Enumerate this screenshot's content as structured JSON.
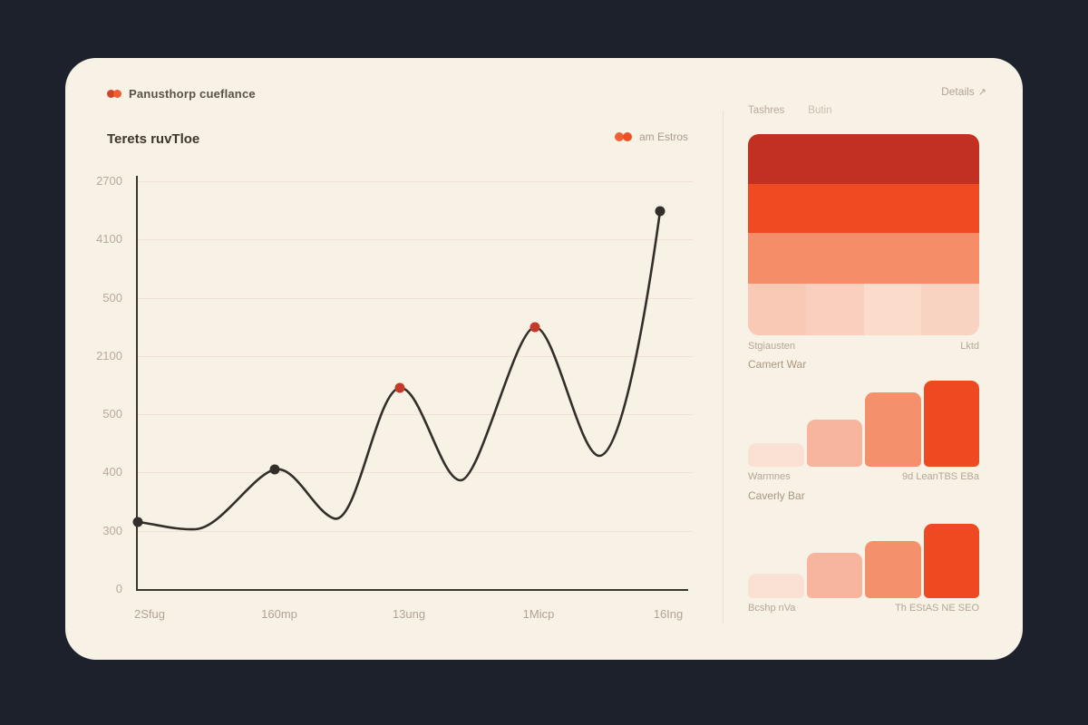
{
  "colors": {
    "background": "#1c212b",
    "card": "#f8f1e6",
    "accent_dark_red": "#c13020",
    "accent_orange": "#ee4a21",
    "curve": "#332e29",
    "marker_dark": "#332e29",
    "marker_red": "#c33a28"
  },
  "header": {
    "brand": "Panusthorp cueflance",
    "details_label": "Details",
    "details_icon": "↗"
  },
  "chart": {
    "title": "Terets ruvTloe",
    "legend_label": "am Estros",
    "y_ticks": [
      "2700",
      "4100",
      "500",
      "2100",
      "500",
      "400",
      "300",
      "0"
    ],
    "x_ticks": [
      "2Sfug",
      "160mp",
      "13ung",
      "1Micp",
      "16Ing"
    ]
  },
  "chart_data": {
    "type": "line",
    "title": "Terets ruvTloe",
    "x": [
      "2Sfug",
      "160mp",
      "13ung",
      "1Micp",
      "16Ing"
    ],
    "series": [
      {
        "name": "am Estros",
        "values": [
          115,
          210,
          350,
          460,
          660
        ]
      }
    ],
    "marker_colors": [
      "dark",
      "dark",
      "red",
      "red",
      "dark"
    ],
    "valleys_between_points": [
      100,
      125,
      190,
      230
    ],
    "ylim": [
      0,
      700
    ],
    "grid": true,
    "legend_position": "top-right",
    "note": "values estimated from gridline spacing; axis tick text is decorative/garbled in source"
  },
  "side": {
    "tabs": [
      {
        "label": "Tashres"
      },
      {
        "label": "Butin"
      }
    ],
    "palette": {
      "band_colors": [
        "#c13020",
        "#f04a22",
        "#f68d69"
      ],
      "band_heights": [
        55,
        54,
        56
      ],
      "cell_colors": [
        "#f9c9b5",
        "#facfbd",
        "#fbdccb",
        "#f9d3c1"
      ],
      "cells_height": 57,
      "left_label": "Stgiausten",
      "right_label": "Lktd"
    },
    "bar_colors": [
      "#fae1d4",
      "#f7b59d",
      "#f5906c",
      "#ee4a21"
    ],
    "section1": {
      "title": "Camert War",
      "heights_pct": [
        27,
        55,
        86,
        100
      ],
      "left_label": "Warmnes",
      "right_label": "9d LeanTBS EBa"
    },
    "section2": {
      "title": "Caverly Bar",
      "heights_pct": [
        33,
        61,
        77,
        100
      ],
      "left_label": "Bcshp nVa",
      "right_label": "Th EStAS NE SEO"
    }
  }
}
